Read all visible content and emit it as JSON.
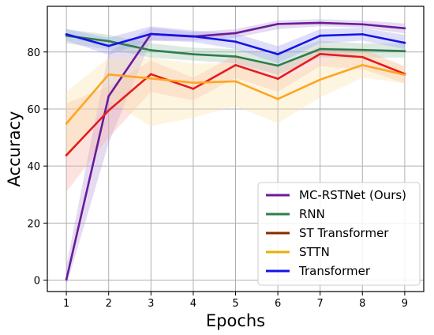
{
  "chart_data": {
    "type": "line",
    "xlabel": "Epochs",
    "ylabel": "Accuracy",
    "x": [
      1,
      2,
      3,
      4,
      5,
      6,
      7,
      8,
      9
    ],
    "xlim": [
      0.55,
      9.45
    ],
    "ylim": [
      -4,
      96
    ],
    "xticks": [
      1,
      2,
      3,
      4,
      5,
      6,
      7,
      8,
      9
    ],
    "yticks": [
      0,
      20,
      40,
      60,
      80
    ],
    "grid": true,
    "legend_position": "lower-right",
    "series": [
      {
        "name": "MC-RSTNet (Ours)",
        "color": "#6a1b9a",
        "band": "#b59ad6",
        "values": [
          0.2,
          64.5,
          86.3,
          85.4,
          86.6,
          89.8,
          90.2,
          89.7,
          88.3
        ],
        "lower": [
          -2,
          48,
          84,
          84,
          85,
          88,
          89,
          88.5,
          86.5
        ],
        "upper": [
          5,
          80,
          88.5,
          87,
          88,
          91,
          91.5,
          91,
          90
        ]
      },
      {
        "name": "RNN",
        "color": "#2e7d4f",
        "band": "#9cc6ad",
        "values": [
          85.7,
          83.8,
          80.6,
          79.2,
          78.4,
          75.2,
          81.0,
          80.7,
          80.3
        ],
        "lower": [
          83,
          81,
          78,
          77,
          76,
          72,
          78,
          78,
          78
        ],
        "upper": [
          88,
          86,
          83,
          81.5,
          81,
          79,
          84,
          83,
          83
        ]
      },
      {
        "name": "ST Transformer",
        "color": "#e51c1c",
        "band": "#f7b0a4",
        "values": [
          43.8,
          59.5,
          72.2,
          67.1,
          75.4,
          70.6,
          79.3,
          78.2,
          72.3
        ],
        "lower": [
          31,
          50,
          66,
          63,
          71,
          66,
          75,
          74,
          69
        ],
        "upper": [
          62,
          68,
          77,
          71,
          79,
          75,
          82,
          81,
          75
        ]
      },
      {
        "name": "STTN",
        "color": "#ffa51f",
        "band": "#fde3a8",
        "values": [
          54.9,
          72.1,
          70.7,
          69.2,
          69.7,
          63.5,
          70.3,
          75.4,
          72.0
        ],
        "lower": [
          42,
          63,
          54,
          57,
          61,
          55,
          64,
          71,
          69
        ],
        "upper": [
          66,
          78,
          78,
          76,
          76,
          70,
          76,
          80,
          75
        ]
      },
      {
        "name": "Transformer",
        "color": "#1414e6",
        "band": "#a0a0f0",
        "values": [
          86.2,
          82.1,
          86.3,
          85.5,
          83.6,
          79.2,
          85.7,
          86.2,
          83.2
        ],
        "lower": [
          84,
          79,
          84,
          83.5,
          81,
          76,
          83,
          84,
          81
        ],
        "upper": [
          88,
          85,
          89,
          87.5,
          86.5,
          82,
          88,
          88.5,
          86
        ]
      }
    ],
    "legend": [
      {
        "label": "MC-RSTNet (Ours)",
        "color": "#6a1b9a"
      },
      {
        "label": "RNN",
        "color": "#2e7d4f"
      },
      {
        "label": "ST Transformer",
        "color": "#8b2a00"
      },
      {
        "label": "STTN",
        "color": "#e6b000"
      },
      {
        "label": "Transformer",
        "color": "#1414e6"
      }
    ]
  }
}
